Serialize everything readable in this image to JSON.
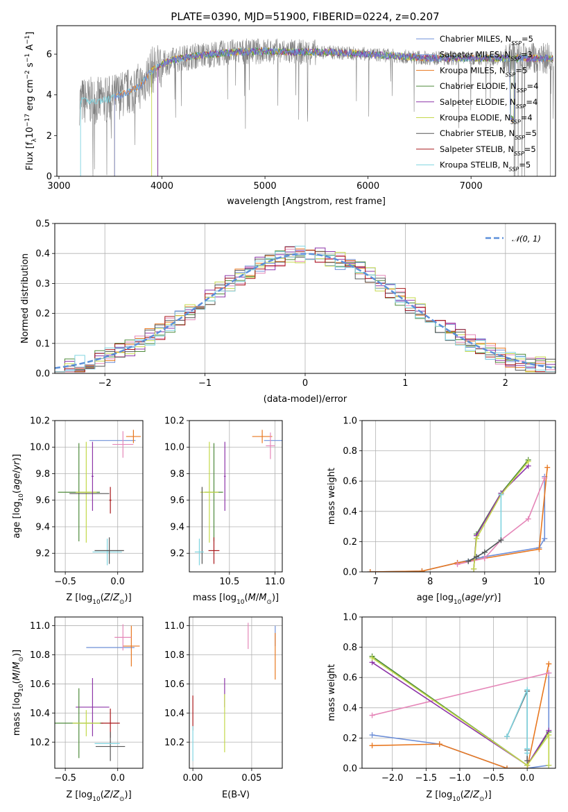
{
  "title": "PLATE=0390, MJD=51900, FIBERID=0224, z=0.207",
  "colors": {
    "chabrier_miles": "#6d8fd8",
    "salpeter_miles": "#7da0de",
    "kroupa_miles": "#e8771f",
    "chabrier_elodie": "#4e8a3a",
    "salpeter_elodie": "#8c34a8",
    "kroupa_elodie": "#c4d84a",
    "chabrier_stelib": "#555555",
    "salpeter_stelib": "#a8171a",
    "kroupa_stelib": "#7fd4e0",
    "pink": "#e586b8",
    "gauss": "#5b8fd9",
    "spectrum": "#808080"
  },
  "chart_data": [
    {
      "type": "line",
      "id": "spectrum",
      "xlabel": "wavelength [Angstrom, rest frame]",
      "ylabel": "Flux [f_λ 10^-17 erg cm^-2 s^-1 A^-1]",
      "xlim": [
        2980,
        7820
      ],
      "ylim": [
        0,
        7.4
      ],
      "xticks": [
        "3000",
        "4000",
        "5000",
        "6000",
        "7000"
      ],
      "yticks": [
        "0",
        "2",
        "4",
        "6"
      ],
      "legend_position": "top-right",
      "legend": [
        "Chabrier MILES, N_SSP=5",
        "Salpeter MILES, N_SSP=3",
        "Kroupa MILES, N_SSP=5",
        "Chabrier ELODIE, N_SSP=4",
        "Salpeter ELODIE, N_SSP=4",
        "Kroupa ELODIE, N_SSP=4",
        "Chabrier STELIB, N_SSP=5",
        "Salpeter STELIB, N_SSP=5",
        "Kroupa STELIB, N_SSP=5"
      ],
      "continuum": {
        "x": [
          3200,
          3300,
          3400,
          3500,
          3600,
          3700,
          3800,
          3900,
          4000,
          4100,
          4300,
          4500,
          4700,
          5000,
          5300,
          5600,
          6000,
          6300,
          6600,
          7000,
          7400,
          7800
        ],
        "y": [
          3.7,
          3.7,
          3.7,
          3.8,
          4.0,
          4.2,
          4.5,
          5.2,
          5.5,
          5.7,
          5.9,
          6.0,
          6.1,
          6.15,
          6.1,
          6.1,
          6.0,
          5.9,
          5.8,
          5.8,
          5.8,
          5.8
        ]
      },
      "model_cutoffs_angstrom": [
        3210,
        3540,
        3900,
        3960
      ]
    },
    {
      "type": "histogram",
      "id": "residuals",
      "xlabel": "(data-model)/error",
      "ylabel": "Normed distribution",
      "xlim": [
        -2.5,
        2.5
      ],
      "ylim": [
        0,
        0.5
      ],
      "xticks": [
        "−2",
        "−1",
        "0",
        "1",
        "2"
      ],
      "yticks": [
        "0.0",
        "0.1",
        "0.2",
        "0.3",
        "0.4",
        "0.5"
      ],
      "bin_width": 0.1,
      "legend": [
        "𝒩(0, 1)"
      ],
      "legend_position": "top-right",
      "gaussian": {
        "mean": 0,
        "sigma": 1
      }
    },
    {
      "type": "scatter",
      "id": "age_vs_Z",
      "xlabel": "Z [log10(Z/Z⊙)]",
      "ylabel": "age  [log10(age/yr)]",
      "xlim": [
        -0.6,
        0.24
      ],
      "ylim": [
        9.06,
        10.2
      ],
      "xticks": [
        "−0.5",
        "0.0"
      ],
      "yticks": [
        "9.2",
        "9.4",
        "9.6",
        "9.8",
        "10.0",
        "10.2"
      ],
      "points": [
        {
          "c": "chabrier_miles",
          "x": -0.05,
          "y": 10.05,
          "xe": 0.22,
          "ye": 0.0
        },
        {
          "c": "kroupa_miles",
          "x": 0.15,
          "y": 10.08,
          "xe": 0.07,
          "ye": 0.05
        },
        {
          "c": "pink",
          "x": 0.05,
          "y": 10.02,
          "xe": 0.1,
          "ye": 0.1
        },
        {
          "c": "chabrier_elodie",
          "x": -0.37,
          "y": 9.66,
          "xe": 0.2,
          "ye": 0.37
        },
        {
          "c": "kroupa_elodie",
          "x": -0.3,
          "y": 9.66,
          "xe": 0.1,
          "ye": 0.38
        },
        {
          "c": "salpeter_elodie",
          "x": -0.24,
          "y": 9.78,
          "xe": 0.01,
          "ye": 0.26
        },
        {
          "c": "chabrier_stelib",
          "x": -0.27,
          "y": 9.65,
          "xe": 0.19,
          "ye": 0.0
        },
        {
          "c": "salpeter_stelib",
          "x": -0.07,
          "y": 9.6,
          "xe": 0.01,
          "ye": 0.1
        },
        {
          "c": "kroupa_stelib",
          "x": -0.1,
          "y": 9.21,
          "xe": 0.14,
          "ye": 0.1
        },
        {
          "c": "chabrier_stelib",
          "x": -0.08,
          "y": 9.22,
          "xe": 0.14,
          "ye": 0.1
        }
      ]
    },
    {
      "type": "scatter",
      "id": "age_vs_mass",
      "xlabel": "mass [log10(M/M⊙)]",
      "xlim": [
        10.06,
        11.08
      ],
      "ylim": [
        9.06,
        10.2
      ],
      "xticks": [
        "10.5",
        "11.0"
      ],
      "yticks": [
        "9.2",
        "9.4",
        "9.6",
        "9.8",
        "10.0",
        "10.2"
      ],
      "points": [
        {
          "c": "chabrier_miles",
          "x": 10.98,
          "y": 10.05,
          "xe": 0.1,
          "ye": 0.0
        },
        {
          "c": "kroupa_miles",
          "x": 10.86,
          "y": 10.08,
          "xe": 0.11,
          "ye": 0.05
        },
        {
          "c": "pink",
          "x": 10.95,
          "y": 10.01,
          "xe": 0.05,
          "ye": 0.1
        },
        {
          "c": "salpeter_elodie",
          "x": 10.45,
          "y": 9.78,
          "xe": 0.01,
          "ye": 0.26
        },
        {
          "c": "chabrier_elodie",
          "x": 10.33,
          "y": 9.66,
          "xe": 0.1,
          "ye": 0.37
        },
        {
          "c": "kroupa_elodie",
          "x": 10.28,
          "y": 9.66,
          "xe": 0.1,
          "ye": 0.38
        },
        {
          "c": "salpeter_stelib",
          "x": 10.33,
          "y": 9.22,
          "xe": 0.06,
          "ye": 0.1
        },
        {
          "c": "chabrier_stelib",
          "x": 10.2,
          "y": 9.41,
          "xe": 0.0,
          "ye": 0.29
        },
        {
          "c": "kroupa_stelib",
          "x": 10.17,
          "y": 9.21,
          "xe": 0.05,
          "ye": 0.1
        }
      ]
    },
    {
      "type": "line",
      "id": "mass_weight_vs_age",
      "xlabel": "age  [log10(age/yr)]",
      "ylabel": "mass weight",
      "xlim": [
        6.75,
        10.3
      ],
      "ylim": [
        0,
        1.0
      ],
      "xticks": [
        "7",
        "8",
        "9",
        "10"
      ],
      "yticks": [
        "0.0",
        "0.2",
        "0.4",
        "0.6",
        "0.8",
        "1.0"
      ],
      "series": [
        {
          "c": "chabrier_miles",
          "x": [
            6.9,
            7.85,
            8.5,
            9.0,
            10.0,
            10.1,
            10.1
          ],
          "y": [
            0.0,
            0.005,
            0.06,
            0.1,
            0.16,
            0.22,
            0.63
          ]
        },
        {
          "c": "kroupa_miles",
          "x": [
            6.9,
            7.85,
            8.5,
            9.0,
            10.0,
            10.15
          ],
          "y": [
            0.0,
            0.005,
            0.06,
            0.09,
            0.15,
            0.69
          ]
        },
        {
          "c": "pink",
          "x": [
            8.5,
            9.0,
            9.3,
            9.8,
            10.1
          ],
          "y": [
            0.05,
            0.09,
            0.21,
            0.35,
            0.62
          ]
        },
        {
          "c": "chabrier_elodie",
          "x": [
            8.8,
            8.85,
            9.3,
            9.8
          ],
          "y": [
            0.02,
            0.25,
            0.52,
            0.74
          ]
        },
        {
          "c": "salpeter_elodie",
          "x": [
            8.8,
            8.85,
            9.3,
            9.8
          ],
          "y": [
            0.02,
            0.24,
            0.52,
            0.7
          ]
        },
        {
          "c": "kroupa_elodie",
          "x": [
            8.8,
            8.85,
            9.3,
            9.8
          ],
          "y": [
            0.02,
            0.22,
            0.51,
            0.73
          ]
        },
        {
          "c": "kroupa_stelib",
          "x": [
            8.7,
            8.85,
            9.0,
            9.3,
            9.3
          ],
          "y": [
            0.07,
            0.1,
            0.13,
            0.21,
            0.51
          ]
        },
        {
          "c": "chabrier_stelib",
          "x": [
            8.7,
            8.85,
            9.0,
            9.3
          ],
          "y": [
            0.07,
            0.1,
            0.13,
            0.21
          ]
        }
      ]
    },
    {
      "type": "scatter",
      "id": "mass_vs_Z",
      "xlabel": "Z [log10(Z/Z⊙)]",
      "ylabel": "mass [log10(M/M⊙)]",
      "xlim": [
        -0.6,
        0.24
      ],
      "ylim": [
        10.02,
        11.06
      ],
      "xticks": [
        "−0.5",
        "0.0"
      ],
      "yticks": [
        "10.2",
        "10.4",
        "10.6",
        "10.8",
        "11.0"
      ],
      "points": [
        {
          "c": "chabrier_miles",
          "x": -0.07,
          "y": 10.85,
          "xe": 0.23,
          "ye": 0.0
        },
        {
          "c": "kroupa_miles",
          "x": 0.13,
          "y": 10.86,
          "xe": 0.08,
          "ye": 0.14
        },
        {
          "c": "pink",
          "x": 0.05,
          "y": 10.92,
          "xe": 0.08,
          "ye": 0.09
        },
        {
          "c": "salpeter_elodie",
          "x": -0.24,
          "y": 10.44,
          "xe": 0.16,
          "ye": 0.2
        },
        {
          "c": "chabrier_elodie",
          "x": -0.37,
          "y": 10.33,
          "xe": 0.23,
          "ye": 0.24
        },
        {
          "c": "kroupa_elodie",
          "x": -0.3,
          "y": 10.33,
          "xe": 0.13,
          "ye": 0.09
        },
        {
          "c": "salpeter_stelib",
          "x": -0.07,
          "y": 10.33,
          "xe": 0.09,
          "ye": 0.1
        },
        {
          "c": "chabrier_stelib",
          "x": -0.07,
          "y": 10.17,
          "xe": 0.14,
          "ye": 0.1
        },
        {
          "c": "kroupa_stelib",
          "x": -0.1,
          "y": 10.19,
          "xe": 0.12,
          "ye": 0.0
        }
      ]
    },
    {
      "type": "scatter",
      "id": "mass_vs_ebv",
      "xlabel": "E(B-V)",
      "xlim": [
        -0.003,
        0.076
      ],
      "ylim": [
        10.02,
        11.06
      ],
      "xticks": [
        "0.00",
        "0.05"
      ],
      "yticks": [
        "10.2",
        "10.4",
        "10.6",
        "10.8",
        "11.0"
      ],
      "points": [
        {
          "c": "salpeter_stelib",
          "x": 0.0,
          "y": 10.4,
          "xe": 0.0,
          "ye": 0.12
        },
        {
          "c": "kroupa_stelib",
          "x": 0.0,
          "y": 10.19,
          "xe": 0.0,
          "ye": 0.12
        },
        {
          "c": "salpeter_elodie",
          "x": 0.027,
          "y": 10.54,
          "xe": 0.0,
          "ye": 0.1
        },
        {
          "c": "kroupa_elodie",
          "x": 0.027,
          "y": 10.33,
          "xe": 0.0,
          "ye": 0.2
        },
        {
          "c": "pink",
          "x": 0.047,
          "y": 10.93,
          "xe": 0.0,
          "ye": 0.09
        },
        {
          "c": "chabrier_miles",
          "x": 0.07,
          "y": 10.93,
          "xe": 0.0,
          "ye": 0.07
        },
        {
          "c": "kroupa_miles",
          "x": 0.07,
          "y": 10.79,
          "xe": 0.0,
          "ye": 0.16
        }
      ]
    },
    {
      "type": "line",
      "id": "mass_weight_vs_Z",
      "xlabel": "Z [log10(Z/Z⊙)]",
      "ylabel": "mass weight",
      "xlim": [
        -2.45,
        0.42
      ],
      "ylim": [
        0,
        1.0
      ],
      "xticks": [
        "−2.0",
        "−1.5",
        "−1.0",
        "−0.5",
        "0.0"
      ],
      "yticks": [
        "0.0",
        "0.2",
        "0.4",
        "0.6",
        "0.8",
        "1.0"
      ],
      "series": [
        {
          "c": "chabrier_miles",
          "x": [
            -2.3,
            -1.3,
            -0.3,
            0.0,
            0.32,
            0.32
          ],
          "y": [
            0.22,
            0.16,
            0.0,
            0.0,
            0.02,
            0.63
          ]
        },
        {
          "c": "kroupa_miles",
          "x": [
            -2.3,
            -1.3,
            -0.3,
            0.0,
            0.32
          ],
          "y": [
            0.15,
            0.16,
            0.0,
            0.0,
            0.69
          ]
        },
        {
          "c": "pink",
          "x": [
            -2.3,
            0.32
          ],
          "y": [
            0.35,
            0.63
          ]
        },
        {
          "c": "chabrier_elodie",
          "x": [
            -2.3,
            0.0,
            0.32
          ],
          "y": [
            0.74,
            0.02,
            0.24
          ]
        },
        {
          "c": "salpeter_elodie",
          "x": [
            -2.3,
            0.0,
            0.32
          ],
          "y": [
            0.7,
            0.02,
            0.25
          ]
        },
        {
          "c": "kroupa_elodie",
          "x": [
            -2.3,
            0.0,
            0.32,
            0.32
          ],
          "y": [
            0.73,
            0.02,
            0.22,
            0.02
          ]
        },
        {
          "c": "chabrier_stelib",
          "x": [
            -0.3,
            0.0,
            0.0,
            0.0
          ],
          "y": [
            0.21,
            0.51,
            0.12,
            0.05
          ]
        },
        {
          "c": "kroupa_stelib",
          "x": [
            -0.3,
            0.0,
            0.0,
            0.0
          ],
          "y": [
            0.21,
            0.52,
            0.13,
            0.1
          ]
        }
      ]
    }
  ]
}
